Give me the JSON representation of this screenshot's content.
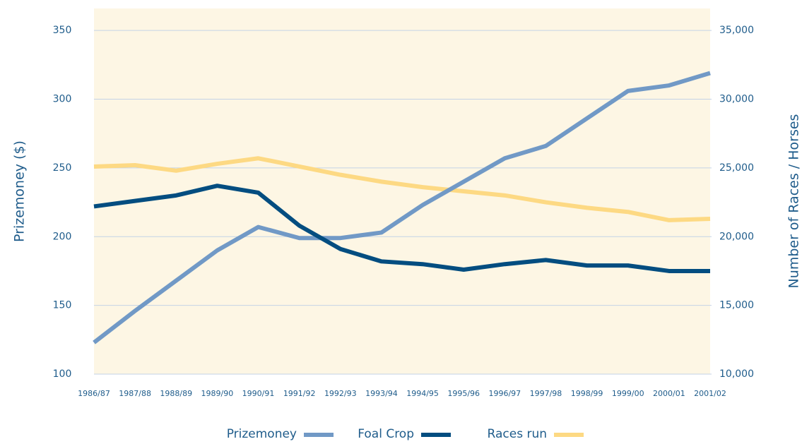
{
  "chart_data": {
    "type": "line",
    "categories": [
      "1986/87",
      "1987/88",
      "1988/89",
      "1989/90",
      "1990/91",
      "1991/92",
      "1992/93",
      "1993/94",
      "1994/95",
      "1995/96",
      "1996/97",
      "1997/98",
      "1998/99",
      "1999/00",
      "2000/01",
      "2001/02"
    ],
    "series": [
      {
        "name": "Prizemoney",
        "color": "#7199c6",
        "axis": "y",
        "values": [
          123,
          146,
          168,
          190,
          207,
          199,
          199,
          203,
          223,
          240,
          257,
          266,
          286,
          306,
          310,
          319
        ]
      },
      {
        "name": "Foal Crop",
        "color": "#034d80",
        "axis": "y2",
        "values": [
          22200,
          22600,
          23000,
          23700,
          23200,
          20800,
          19100,
          18200,
          18000,
          17600,
          18000,
          18300,
          17900,
          17900,
          17500,
          17500
        ]
      },
      {
        "name": "Races run",
        "color": "#fdd983",
        "axis": "y2",
        "values": [
          25100,
          25200,
          24800,
          25300,
          25700,
          25100,
          24500,
          24000,
          23600,
          23300,
          23000,
          22500,
          22100,
          21800,
          21200,
          21300
        ]
      }
    ],
    "ylabel": "Prizemoney ($)",
    "y2label": "Number of Races / Horses",
    "ylim": [
      100,
      366
    ],
    "yticks": [
      100,
      150,
      200,
      250,
      300,
      350
    ],
    "y2lim": [
      10000,
      36600
    ],
    "y2ticks": [
      {
        "value": 10000,
        "label": "10,000"
      },
      {
        "value": 15000,
        "label": "15,000"
      },
      {
        "value": 20000,
        "label": "20,000"
      },
      {
        "value": 25000,
        "label": "25,000"
      },
      {
        "value": 30000,
        "label": "30,000"
      },
      {
        "value": 35000,
        "label": "35,000"
      }
    ],
    "grid": true,
    "legend": "bottom"
  }
}
